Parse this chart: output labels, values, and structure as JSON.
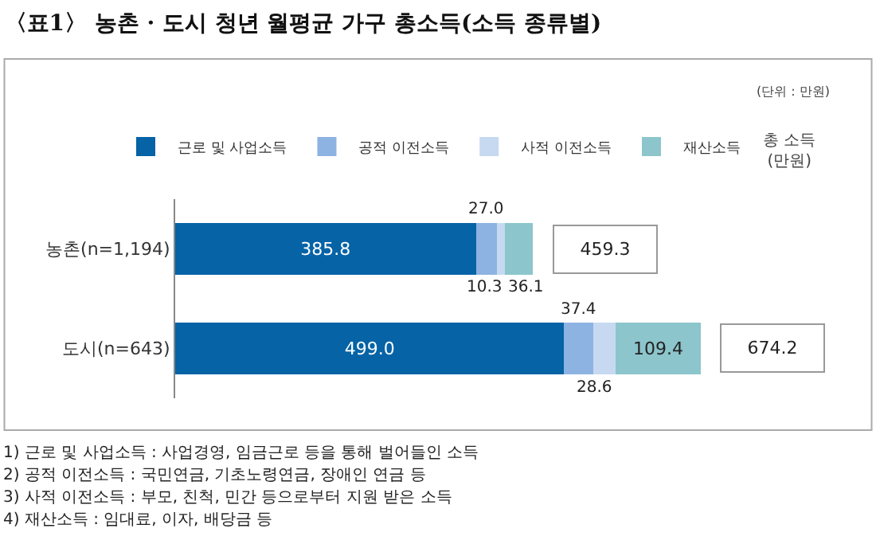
{
  "chart_data": {
    "type": "bar",
    "orientation": "horizontal",
    "stacked": true,
    "tick_labels": "y",
    "title": "〈표1〉 농촌 · 도시 청년 월평균 가구 총소득(소득 종류별)",
    "categories": [
      "농촌(n=1,194)",
      "도시(n=643)"
    ],
    "series": [
      {
        "name": "근로 및 사업소득",
        "color": "#0563a6",
        "values": [
          385.8,
          499.0
        ],
        "value_labels": [
          "385.8",
          "499.0"
        ]
      },
      {
        "name": "공적 이전소득",
        "color": "#8db3e2",
        "values": [
          27.0,
          37.4
        ],
        "value_labels": [
          "27.0",
          "37.4"
        ]
      },
      {
        "name": "사적 이전소득",
        "color": "#c6d9f1",
        "values": [
          10.3,
          28.6
        ],
        "value_labels": [
          "10.3",
          "28.6"
        ]
      },
      {
        "name": "재산소득",
        "color": "#8cc5cc",
        "values": [
          36.1,
          109.4
        ],
        "value_labels": [
          "36.1",
          "109.4"
        ]
      }
    ],
    "totals": [
      "459.3",
      "674.2"
    ],
    "legend": "top",
    "annotations": [
      "(단위 : 만원)",
      "총 소득\n(만원)",
      "1) 근로 및 사업소득 : 사업경영, 임금근로 등을 통해 벌어들인 소득",
      "2) 공적 이전소득 : 국민연금, 기초노령연금, 장애인 연금 등",
      "3) 사적 이전소득 : 부모, 친척, 민간 등으로부터 지원 받은 소득",
      "4) 재산소득 : 임대료, 이자, 배당금 등"
    ]
  }
}
